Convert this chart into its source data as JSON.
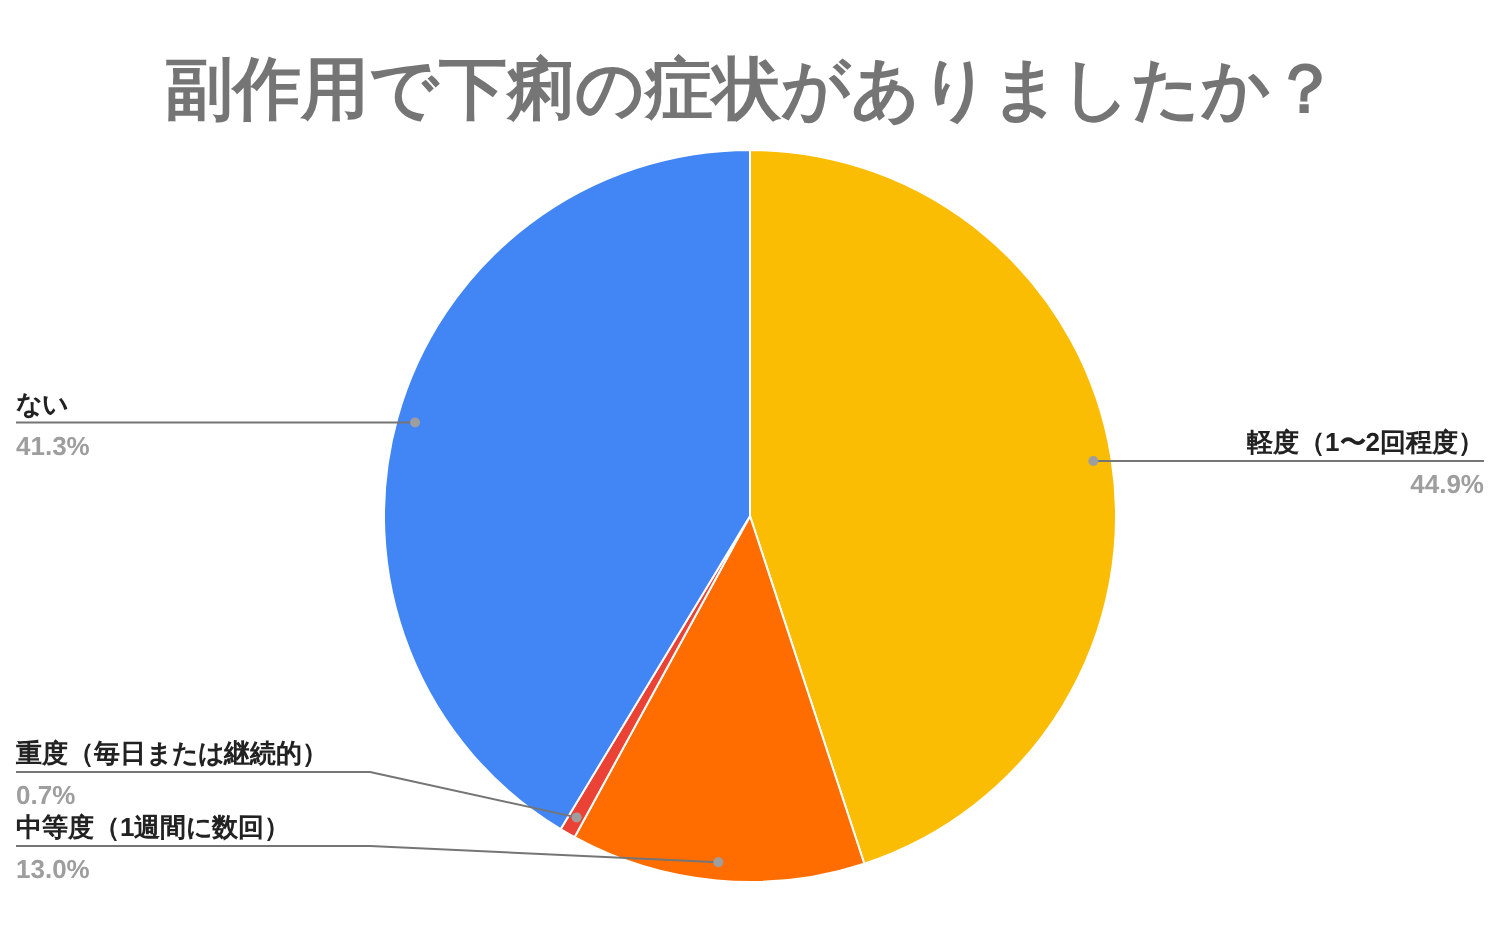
{
  "chart_data": {
    "type": "pie",
    "title": "副作用で下痢の症状がありましたか？",
    "categories": [
      "軽度（1〜2回程度）",
      "中等度（1週間に数回）",
      "重度（毎日または継続的）",
      "ない"
    ],
    "values": [
      44.9,
      13.0,
      0.7,
      41.3
    ],
    "colors": [
      "#fbbc04",
      "#ff6d01",
      "#ea4335",
      "#4285f4"
    ],
    "value_labels": [
      "44.9%",
      "13.0%",
      "0.7%",
      "41.3%"
    ]
  }
}
